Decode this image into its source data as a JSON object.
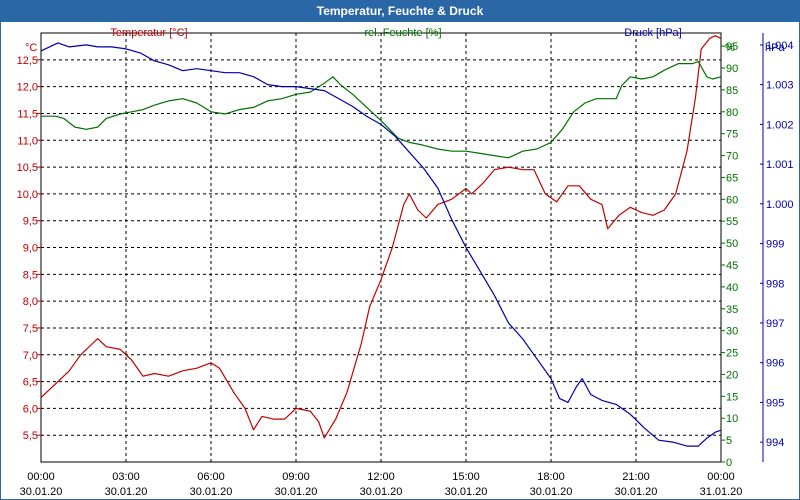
{
  "window_title": "Temperatur, Feuchte & Druck",
  "chart_data": {
    "type": "line",
    "title": "Temperatur, Feuchte & Druck",
    "colors": {
      "temperature": "#c00000",
      "humidity": "#007000",
      "pressure": "#0000aa",
      "grid": "#000000",
      "border": "#2a67a6"
    },
    "x_ticks": [
      {
        "time": "00:00",
        "date": "30.01.20"
      },
      {
        "time": "03:00",
        "date": "30.01.20"
      },
      {
        "time": "06:00",
        "date": "30.01.20"
      },
      {
        "time": "09:00",
        "date": "30.01.20"
      },
      {
        "time": "12:00",
        "date": "30.01.20"
      },
      {
        "time": "15:00",
        "date": "30.01.20"
      },
      {
        "time": "18:00",
        "date": "30.01.20"
      },
      {
        "time": "21:00",
        "date": "30.01.20"
      },
      {
        "time": "00:00",
        "date": "31.01.20"
      }
    ],
    "x_range_hours": [
      0,
      24
    ],
    "axes": {
      "temperature": {
        "label": "Temperatur [°C]",
        "unit": "°C",
        "range": [
          5.0,
          13.0
        ],
        "ticks": [
          "5,5",
          "6,0",
          "6,5",
          "7,0",
          "7,5",
          "8,0",
          "8,5",
          "9,0",
          "9,5",
          "10,0",
          "10,5",
          "11,0",
          "11,5",
          "12,0",
          "12,5"
        ]
      },
      "humidity": {
        "label": "rel. Feuchte [%]",
        "unit": "%",
        "range": [
          0,
          98
        ],
        "ticks": [
          "0",
          "5",
          "10",
          "15",
          "20",
          "25",
          "30",
          "35",
          "40",
          "45",
          "50",
          "55",
          "60",
          "65",
          "70",
          "75",
          "80",
          "85",
          "90",
          "95"
        ]
      },
      "pressure": {
        "label": "Druck [hPa]",
        "unit": "hPa",
        "range": [
          993.5,
          1004.3
        ],
        "ticks": [
          "994",
          "995",
          "996",
          "997",
          "998",
          "999",
          "1.000",
          "1.001",
          "1.002",
          "1.003",
          "1.004"
        ]
      }
    },
    "series": [
      {
        "name": "Temperatur",
        "key": "temperature",
        "axis": "temperature",
        "points": [
          [
            0,
            6.2
          ],
          [
            0.5,
            6.45
          ],
          [
            1,
            6.7
          ],
          [
            1.4,
            7.0
          ],
          [
            1.8,
            7.2
          ],
          [
            2.0,
            7.3
          ],
          [
            2.3,
            7.15
          ],
          [
            2.8,
            7.1
          ],
          [
            3.2,
            6.9
          ],
          [
            3.6,
            6.6
          ],
          [
            4.0,
            6.65
          ],
          [
            4.5,
            6.6
          ],
          [
            5.0,
            6.7
          ],
          [
            5.5,
            6.75
          ],
          [
            6.0,
            6.85
          ],
          [
            6.3,
            6.75
          ],
          [
            6.8,
            6.3
          ],
          [
            7.2,
            6.0
          ],
          [
            7.5,
            5.6
          ],
          [
            7.8,
            5.85
          ],
          [
            8.2,
            5.8
          ],
          [
            8.6,
            5.8
          ],
          [
            9.0,
            6.0
          ],
          [
            9.5,
            5.95
          ],
          [
            9.8,
            5.75
          ],
          [
            10.0,
            5.45
          ],
          [
            10.4,
            5.8
          ],
          [
            10.8,
            6.3
          ],
          [
            11.3,
            7.2
          ],
          [
            11.6,
            7.9
          ],
          [
            12.0,
            8.4
          ],
          [
            12.4,
            9.0
          ],
          [
            12.8,
            9.8
          ],
          [
            13.0,
            10.0
          ],
          [
            13.3,
            9.7
          ],
          [
            13.6,
            9.55
          ],
          [
            14.0,
            9.8
          ],
          [
            14.5,
            9.9
          ],
          [
            15.0,
            10.1
          ],
          [
            15.2,
            10.0
          ],
          [
            15.6,
            10.2
          ],
          [
            16.0,
            10.45
          ],
          [
            16.5,
            10.5
          ],
          [
            17.0,
            10.45
          ],
          [
            17.4,
            10.45
          ],
          [
            17.8,
            10.0
          ],
          [
            18.2,
            9.85
          ],
          [
            18.6,
            10.15
          ],
          [
            19.0,
            10.15
          ],
          [
            19.4,
            9.9
          ],
          [
            19.8,
            9.8
          ],
          [
            20.0,
            9.35
          ],
          [
            20.4,
            9.6
          ],
          [
            20.8,
            9.75
          ],
          [
            21.2,
            9.65
          ],
          [
            21.6,
            9.6
          ],
          [
            22.0,
            9.7
          ],
          [
            22.4,
            10.0
          ],
          [
            22.8,
            10.8
          ],
          [
            23.1,
            11.8
          ],
          [
            23.3,
            12.7
          ],
          [
            23.6,
            12.9
          ],
          [
            23.8,
            12.95
          ],
          [
            24.0,
            12.9
          ]
        ]
      },
      {
        "name": "rel. Feuchte",
        "key": "humidity",
        "axis": "humidity",
        "points": [
          [
            0,
            79
          ],
          [
            0.5,
            79
          ],
          [
            0.8,
            78.5
          ],
          [
            1.2,
            76.5
          ],
          [
            1.6,
            76
          ],
          [
            2.0,
            76.5
          ],
          [
            2.3,
            78.5
          ],
          [
            2.8,
            79.5
          ],
          [
            3.2,
            80
          ],
          [
            3.6,
            80.5
          ],
          [
            4.0,
            81.5
          ],
          [
            4.5,
            82.5
          ],
          [
            5.0,
            83
          ],
          [
            5.5,
            82
          ],
          [
            6.0,
            80
          ],
          [
            6.5,
            79.5
          ],
          [
            7.0,
            80.5
          ],
          [
            7.5,
            81
          ],
          [
            8.0,
            82.5
          ],
          [
            8.5,
            83
          ],
          [
            9.0,
            84
          ],
          [
            9.5,
            84.5
          ],
          [
            10.0,
            86.5
          ],
          [
            10.3,
            88
          ],
          [
            10.6,
            86
          ],
          [
            11.0,
            84
          ],
          [
            11.5,
            81
          ],
          [
            12.0,
            78
          ],
          [
            12.3,
            76
          ],
          [
            12.6,
            74
          ],
          [
            13.0,
            73
          ],
          [
            13.4,
            72.5
          ],
          [
            14.0,
            71.5
          ],
          [
            14.5,
            71
          ],
          [
            15.0,
            71
          ],
          [
            15.5,
            70.5
          ],
          [
            16.0,
            70
          ],
          [
            16.5,
            69.5
          ],
          [
            17.0,
            71
          ],
          [
            17.5,
            71.5
          ],
          [
            18.0,
            73
          ],
          [
            18.4,
            76
          ],
          [
            18.8,
            80
          ],
          [
            19.2,
            82
          ],
          [
            19.6,
            83
          ],
          [
            20.0,
            83
          ],
          [
            20.3,
            83
          ],
          [
            20.5,
            86
          ],
          [
            20.8,
            88
          ],
          [
            21.2,
            87.5
          ],
          [
            21.6,
            88
          ],
          [
            22.0,
            89.5
          ],
          [
            22.5,
            91
          ],
          [
            23.0,
            91
          ],
          [
            23.2,
            91.5
          ],
          [
            23.5,
            88
          ],
          [
            23.7,
            87.5
          ],
          [
            24.0,
            88
          ]
        ]
      },
      {
        "name": "Druck",
        "key": "pressure",
        "axis": "pressure",
        "points": [
          [
            0,
            1003.85
          ],
          [
            0.6,
            1004.05
          ],
          [
            1.0,
            1003.95
          ],
          [
            1.6,
            1004.0
          ],
          [
            2.0,
            1003.95
          ],
          [
            2.5,
            1003.95
          ],
          [
            3.0,
            1003.9
          ],
          [
            3.5,
            1003.8
          ],
          [
            4.0,
            1003.6
          ],
          [
            4.5,
            1003.5
          ],
          [
            5.0,
            1003.35
          ],
          [
            5.5,
            1003.4
          ],
          [
            6.0,
            1003.35
          ],
          [
            6.5,
            1003.3
          ],
          [
            7.0,
            1003.3
          ],
          [
            7.5,
            1003.2
          ],
          [
            8.0,
            1003.0
          ],
          [
            8.5,
            1002.95
          ],
          [
            9.0,
            1002.95
          ],
          [
            9.5,
            1002.9
          ],
          [
            10.0,
            1002.85
          ],
          [
            10.5,
            1002.65
          ],
          [
            11.0,
            1002.45
          ],
          [
            11.5,
            1002.2
          ],
          [
            12.0,
            1002.0
          ],
          [
            12.5,
            1001.7
          ],
          [
            13.0,
            1001.3
          ],
          [
            13.5,
            1000.9
          ],
          [
            14.0,
            1000.4
          ],
          [
            14.5,
            999.6
          ],
          [
            15.0,
            998.9
          ],
          [
            15.5,
            998.3
          ],
          [
            16.0,
            997.7
          ],
          [
            16.5,
            997.0
          ],
          [
            17.0,
            996.6
          ],
          [
            17.5,
            996.1
          ],
          [
            18.0,
            995.6
          ],
          [
            18.3,
            995.1
          ],
          [
            18.6,
            995.0
          ],
          [
            18.9,
            995.4
          ],
          [
            19.1,
            995.6
          ],
          [
            19.4,
            995.2
          ],
          [
            19.8,
            995.05
          ],
          [
            20.3,
            994.95
          ],
          [
            20.8,
            994.7
          ],
          [
            21.3,
            994.35
          ],
          [
            21.8,
            994.05
          ],
          [
            22.3,
            994.0
          ],
          [
            22.8,
            993.9
          ],
          [
            23.2,
            993.9
          ],
          [
            23.5,
            994.1
          ],
          [
            23.8,
            994.25
          ],
          [
            24.0,
            994.3
          ]
        ]
      }
    ]
  }
}
